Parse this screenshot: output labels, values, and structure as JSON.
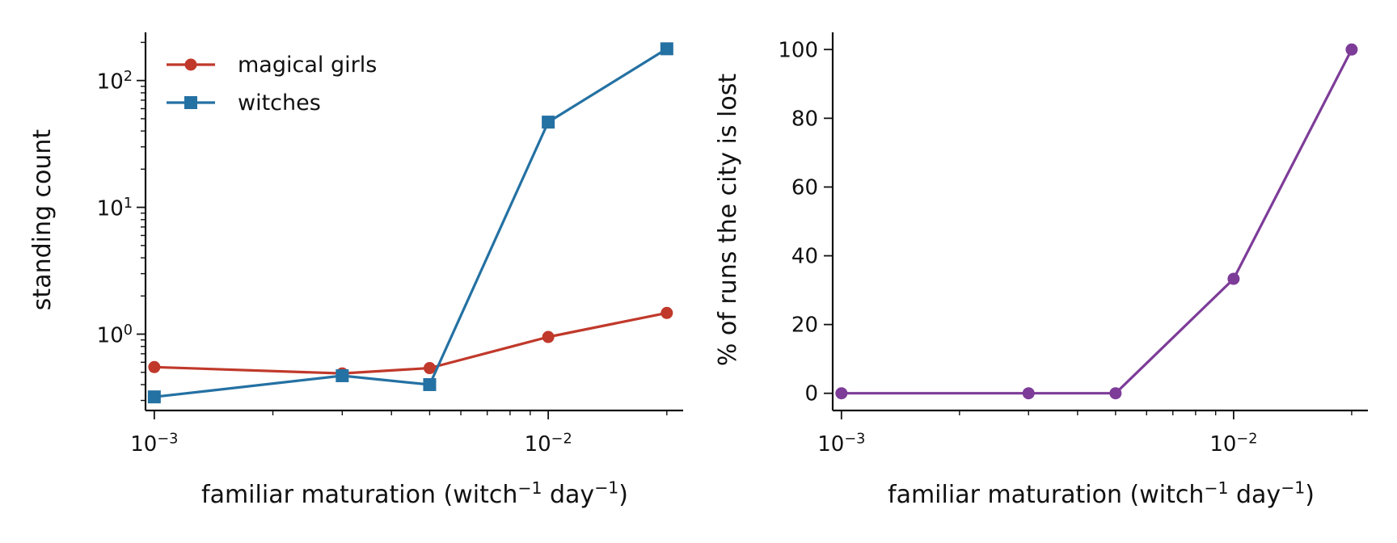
{
  "chart_data": [
    {
      "type": "line",
      "xscale": "log",
      "yscale": "log",
      "xlabel": {
        "main": "familiar maturation (witch",
        "sup1": "−1",
        "mid": " day",
        "sup2": "−1",
        "end": ")"
      },
      "ylabel": "standing count",
      "xlim": [
        0.00095,
        0.022
      ],
      "ylim": [
        0.25,
        240
      ],
      "xticks": [
        {
          "value": 0.001,
          "base": "10",
          "exp": "−3"
        },
        {
          "value": 0.01,
          "base": "10",
          "exp": "−2"
        }
      ],
      "yticks": [
        {
          "value": 1,
          "base": "10",
          "exp": "0"
        },
        {
          "value": 10,
          "base": "10",
          "exp": "1"
        },
        {
          "value": 100,
          "base": "10",
          "exp": "2"
        }
      ],
      "legend": {
        "position": "top-left"
      },
      "grid": false,
      "series": [
        {
          "name": "magical girls",
          "color": "#c0392b",
          "marker": "circle",
          "x": [
            0.001,
            0.003,
            0.005,
            0.01,
            0.02
          ],
          "y": [
            0.55,
            0.49,
            0.54,
            0.95,
            1.47
          ]
        },
        {
          "name": "witches",
          "color": "#2471a3",
          "marker": "square",
          "x": [
            0.001,
            0.003,
            0.005,
            0.01,
            0.02
          ],
          "y": [
            0.32,
            0.47,
            0.4,
            47,
            178
          ]
        }
      ]
    },
    {
      "type": "line",
      "xscale": "log",
      "yscale": "linear",
      "xlabel": {
        "main": "familiar maturation (witch",
        "sup1": "−1",
        "mid": " day",
        "sup2": "−1",
        "end": ")"
      },
      "ylabel": "% of runs the city is lost",
      "xlim": [
        0.00095,
        0.022
      ],
      "ylim": [
        -5,
        105
      ],
      "xticks": [
        {
          "value": 0.001,
          "base": "10",
          "exp": "−3"
        },
        {
          "value": 0.01,
          "base": "10",
          "exp": "−2"
        }
      ],
      "yticks": [
        {
          "value": 0,
          "label": "0"
        },
        {
          "value": 20,
          "label": "20"
        },
        {
          "value": 40,
          "label": "40"
        },
        {
          "value": 60,
          "label": "60"
        },
        {
          "value": 80,
          "label": "80"
        },
        {
          "value": 100,
          "label": "100"
        }
      ],
      "grid": false,
      "series": [
        {
          "color": "#7d3c98",
          "marker": "circle",
          "x": [
            0.001,
            0.003,
            0.005,
            0.01,
            0.02
          ],
          "y": [
            0,
            0,
            0,
            33.3,
            100
          ]
        }
      ]
    }
  ]
}
